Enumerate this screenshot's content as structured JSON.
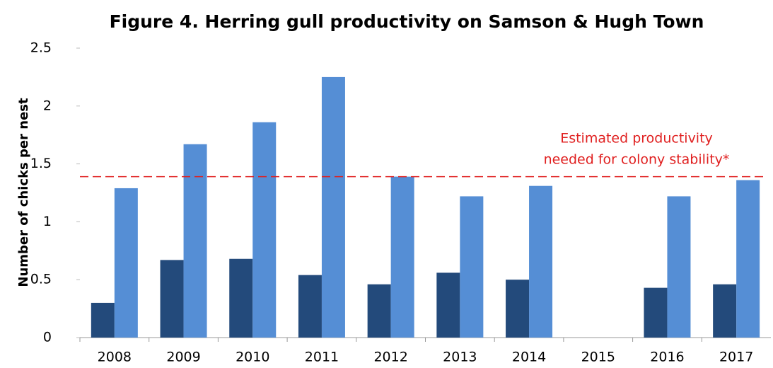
{
  "chart_data": {
    "type": "bar",
    "title": "Figure 4. Herring gull productivity on Samson & Hugh Town",
    "y_label": "Number of chicks per nest",
    "categories": [
      "2008",
      "2009",
      "2010",
      "2011",
      "2012",
      "2013",
      "2014",
      "2015",
      "2016",
      "2017"
    ],
    "series": [
      {
        "color": "#234a7b",
        "values": [
          0.3,
          0.67,
          0.68,
          0.54,
          0.46,
          0.56,
          0.5,
          null,
          0.43,
          0.46
        ]
      },
      {
        "color": "#558ed5",
        "values": [
          1.29,
          1.67,
          1.86,
          2.25,
          1.39,
          1.22,
          1.31,
          null,
          1.22,
          1.36
        ]
      }
    ],
    "ylim": [
      0,
      2.5
    ],
    "yticks": [
      0,
      0.5,
      1,
      1.5,
      2,
      2.5
    ],
    "grid": false,
    "reference_line": {
      "value": 1.39,
      "color": "#e02020",
      "style": "dashed",
      "label": [
        "Estimated productivity",
        "needed for colony stability*"
      ]
    }
  }
}
